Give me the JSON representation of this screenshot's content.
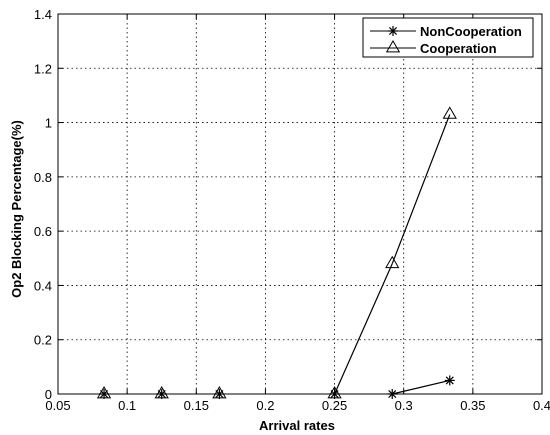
{
  "chart_data": {
    "type": "line",
    "xlabel": "Arrival rates",
    "ylabel": "Op2 Blocking Percentage(%)",
    "xlim": [
      0.05,
      0.4
    ],
    "ylim": [
      0,
      1.4
    ],
    "xticks": [
      "0.05",
      "0.1",
      "0.15",
      "0.2",
      "0.25",
      "0.3",
      "0.35",
      "0.4"
    ],
    "yticks": [
      "0",
      "0.2",
      "0.4",
      "0.6",
      "0.8",
      "1",
      "1.2",
      "1.4"
    ],
    "grid": true,
    "legend_position": "top-right",
    "x": [
      0.0833,
      0.125,
      0.1667,
      0.25,
      0.2917,
      0.3333
    ],
    "series": [
      {
        "name": "NonCooperation",
        "marker": "star",
        "values": [
          0,
          0,
          0,
          0,
          0,
          0.05
        ]
      },
      {
        "name": "Cooperation",
        "marker": "triangle",
        "values": [
          0,
          0,
          0,
          0,
          0.48,
          1.03
        ]
      }
    ]
  }
}
